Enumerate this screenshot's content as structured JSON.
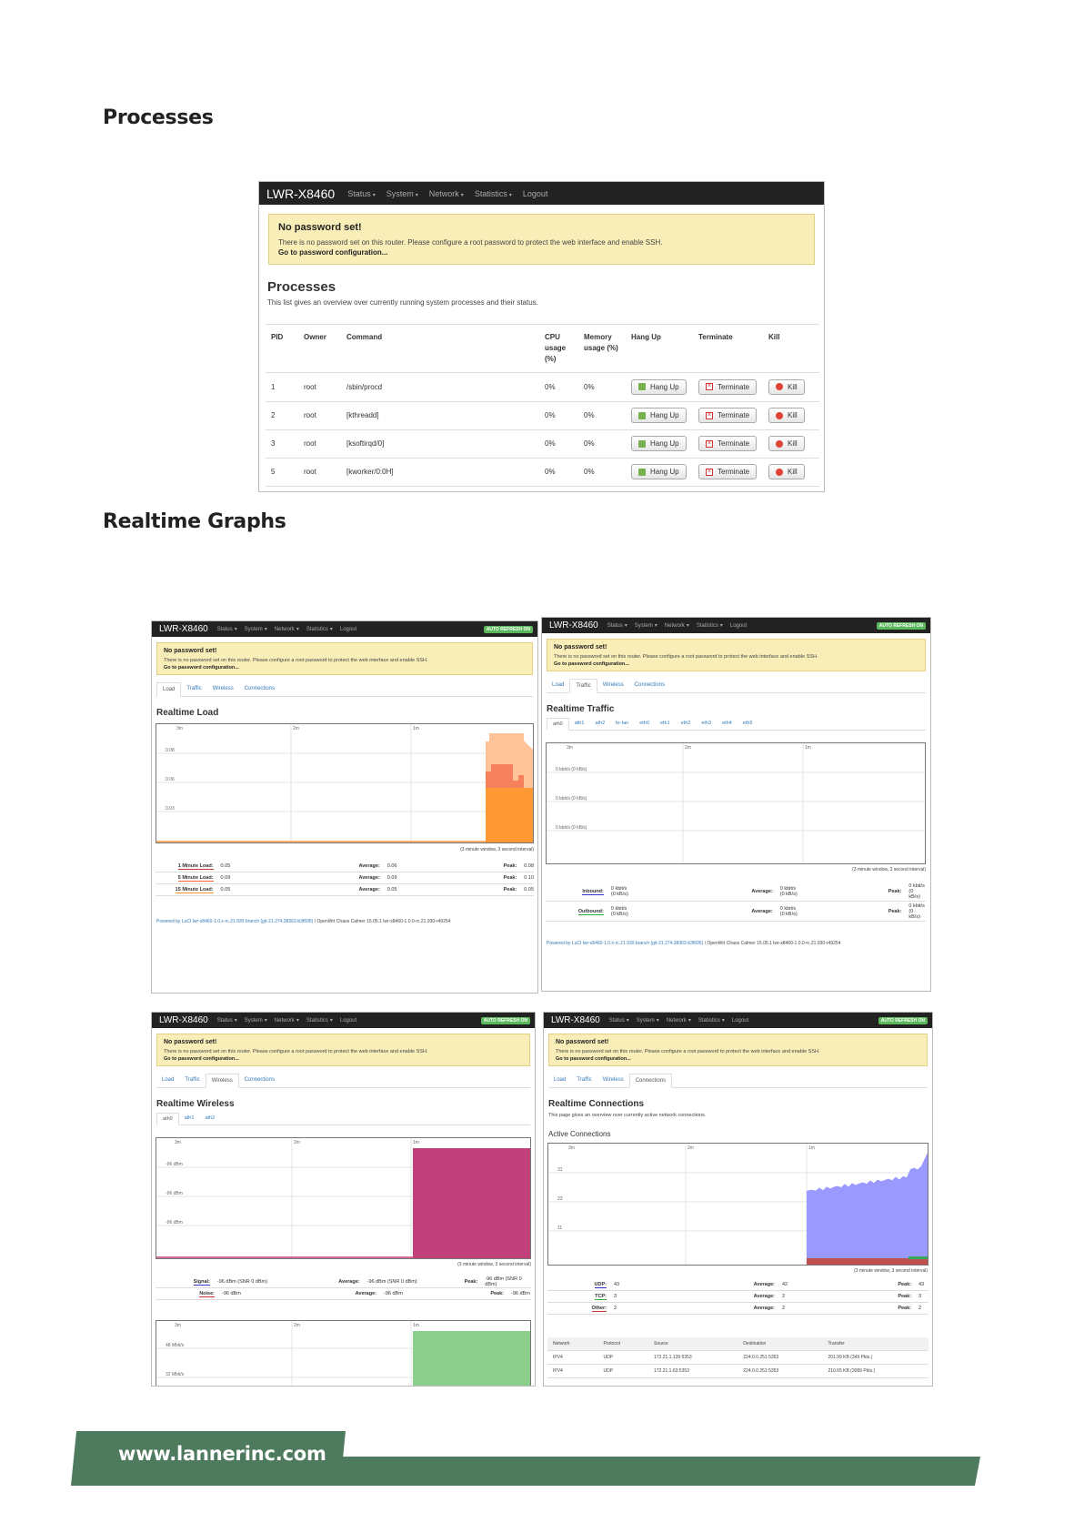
{
  "headings": {
    "processes": "Processes",
    "realtime": "Realtime Graphs"
  },
  "luci": {
    "brand": "LWR-X8460",
    "nav": [
      "Status",
      "System",
      "Network",
      "Statistics",
      "Logout"
    ],
    "auto_refresh": "AUTO REFRESH ON",
    "alert_title": "No password set!",
    "alert_text": "There is no password set on this router. Please configure a root password to protect the web interface and enable SSH.",
    "alert_link": "Go to password configuration...",
    "tabs": [
      "Load",
      "Traffic",
      "Wireless",
      "Connections"
    ],
    "footer_link": "Powered by LuCI lwr-x8460-1.0.x-rc.21.930 branch (git-21.274.38363-b3f695)",
    "footer_rest": " / OpenWrt Chaos Calmer 15.05.1 lwr-x8460-1.0.0-rc.21.930-r49254"
  },
  "processes": {
    "title": "Processes",
    "description": "This list gives an overview over currently running system processes and their status.",
    "columns": [
      "PID",
      "Owner",
      "Command",
      "CPU usage (%)",
      "Memory usage (%)",
      "Hang Up",
      "Terminate",
      "Kill"
    ],
    "button_labels": {
      "hangup": "Hang Up",
      "terminate": "Terminate",
      "kill": "Kill"
    },
    "rows": [
      {
        "pid": "1",
        "owner": "root",
        "command": "/sbin/procd",
        "cpu": "0%",
        "mem": "0%"
      },
      {
        "pid": "2",
        "owner": "root",
        "command": "[kthreadd]",
        "cpu": "0%",
        "mem": "0%"
      },
      {
        "pid": "3",
        "owner": "root",
        "command": "[ksoftirqd/0]",
        "cpu": "0%",
        "mem": "0%"
      },
      {
        "pid": "5",
        "owner": "root",
        "command": "[kworker/0:0H]",
        "cpu": "0%",
        "mem": "0%"
      }
    ]
  },
  "load": {
    "title": "Realtime Load",
    "time_labels": [
      "3m",
      "2m",
      "1m"
    ],
    "y_labels": [
      "0.08",
      "0.06",
      "0.03"
    ],
    "window_note": "(3 minute window, 3 second interval)",
    "legend": [
      {
        "label": "1 Minute Load:",
        "value": "0.05",
        "avg_label": "Average:",
        "avg": "0.06",
        "peak_label": "Peak:",
        "peak": "0.08",
        "color": "#cc3333"
      },
      {
        "label": "5 Minute Load:",
        "value": "0.09",
        "avg_label": "Average:",
        "avg": "0.09",
        "peak_label": "Peak:",
        "peak": "0.10",
        "color": "#ff6633"
      },
      {
        "label": "15 Minute Load:",
        "value": "0.05",
        "avg_label": "Average:",
        "avg": "0.05",
        "peak_label": "Peak:",
        "peak": "0.05",
        "color": "#ff9933"
      }
    ]
  },
  "traffic": {
    "title": "Realtime Traffic",
    "interfaces": [
      "ath0",
      "ath1",
      "ath2",
      "br-lan",
      "eth0",
      "eth1",
      "eth2",
      "eth3",
      "eth4",
      "eth5"
    ],
    "time_labels": [
      "3m",
      "2m",
      "1m"
    ],
    "y_labels": [
      "0 kbit/s (0 kB/s)",
      "0 kbit/s (0 kB/s)",
      "0 kbit/s (0 kB/s)"
    ],
    "window_note": "(3 minute window, 3 second interval)",
    "legend": [
      {
        "label": "Inbound:",
        "value": "0 kbit/s",
        "value2": "(0 kB/s)",
        "avg_label": "Average:",
        "avg": "0 kbit/s",
        "avg2": "(0 kB/s)",
        "peak_label": "Peak:",
        "peak": "0 kbit/s",
        "peak2": "(0 kB/s)",
        "color": "#3333cc"
      },
      {
        "label": "Outbound:",
        "value": "0 kbit/s",
        "value2": "(0 kB/s)",
        "avg_label": "Average:",
        "avg": "0 kbit/s",
        "avg2": "(0 kB/s)",
        "peak_label": "Peak:",
        "peak": "0 kbit/s",
        "peak2": "(0 kB/s)",
        "color": "#33aa33"
      }
    ]
  },
  "wireless": {
    "title": "Realtime Wireless",
    "interfaces": [
      "ath0",
      "ath1",
      "ath2"
    ],
    "time_labels": [
      "3m",
      "2m",
      "1m"
    ],
    "y_labels": [
      "-96 dBm",
      "-96 dBm",
      "-96 dBm"
    ],
    "window_note": "(3 minute window, 3 second interval)",
    "legend": [
      {
        "label": "Signal:",
        "value": "-96 dBm (SNR 0 dBm)",
        "avg_label": "Average:",
        "avg": "-96 dBm (SNR 0 dBm)",
        "peak_label": "Peak:",
        "peak": "-96 dBm (SNR 0 dBm)",
        "color": "#3333cc"
      },
      {
        "label": "Noise:",
        "value": "-96 dBm",
        "avg_label": "Average:",
        "avg": "-96 dBm",
        "peak_label": "Peak:",
        "peak": "-96 dBm",
        "color": "#cc3333"
      }
    ],
    "rate_time_labels": [
      "3m",
      "2m",
      "1m"
    ],
    "rate_y_labels": [
      "48 Mbit/s",
      "32 Mbit/s"
    ]
  },
  "connections": {
    "title": "Realtime Connections",
    "description": "This page gives an overview over currently active network connections.",
    "subtitle": "Active Connections",
    "time_labels": [
      "3m",
      "2m",
      "1m"
    ],
    "y_labels": [
      "31",
      "23",
      "11"
    ],
    "window_note": "(3 minute window, 3 second interval)",
    "legend": [
      {
        "label": "UDP:",
        "value": "43",
        "avg_label": "Average:",
        "avg": "42",
        "peak_label": "Peak:",
        "peak": "43",
        "color": "#3333cc"
      },
      {
        "label": "TCP:",
        "value": "3",
        "avg_label": "Average:",
        "avg": "2",
        "peak_label": "Peak:",
        "peak": "3",
        "color": "#33aa33"
      },
      {
        "label": "Other:",
        "value": "2",
        "avg_label": "Average:",
        "avg": "2",
        "peak_label": "Peak:",
        "peak": "2",
        "color": "#cc3333"
      }
    ],
    "table_columns": [
      "Network",
      "Protocol",
      "Source",
      "Destination",
      "Transfer"
    ],
    "table_rows": [
      {
        "network": "IPV4",
        "protocol": "UDP",
        "source": "172.21.1.139:5353",
        "destination": "224.0.0.251:5353",
        "transfer": "201.99 KB (349 Pkts.)"
      },
      {
        "network": "IPV4",
        "protocol": "UDP",
        "source": "172.21.1.63:5353",
        "destination": "224.0.0.251:5353",
        "transfer": "210.65 KB (3089 Pkts.)"
      }
    ]
  },
  "footer": {
    "url": "www.lannerinc.com"
  },
  "colors": {
    "banner": "#4e7a5d",
    "navbar": "#222222",
    "alert_bg": "#f9eeb8",
    "load_15": "#ff9933",
    "load_5": "#ff6633",
    "load_1": "#ffbb88",
    "wireless_signal": "#c0407a",
    "wireless_rate": "#8ccf8c",
    "conn_udp": "#9999ff"
  }
}
